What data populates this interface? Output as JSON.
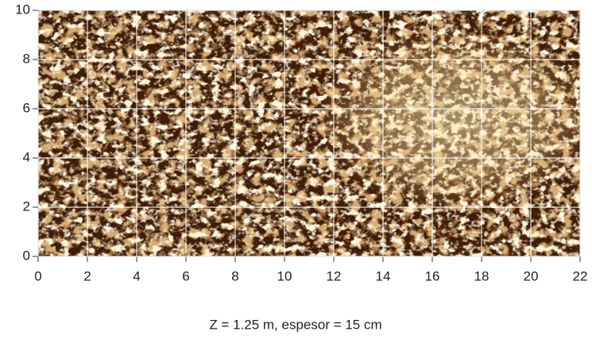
{
  "chart_data": {
    "type": "heatmap",
    "caption": "Z = 1.25 m, espesor = 15 cm",
    "xlim": [
      0,
      22
    ],
    "ylim": [
      0,
      10
    ],
    "xticks": [
      0,
      2,
      4,
      6,
      8,
      10,
      12,
      14,
      16,
      18,
      20,
      22
    ],
    "yticks": [
      0,
      2,
      4,
      6,
      8,
      10
    ],
    "grid": true
  }
}
